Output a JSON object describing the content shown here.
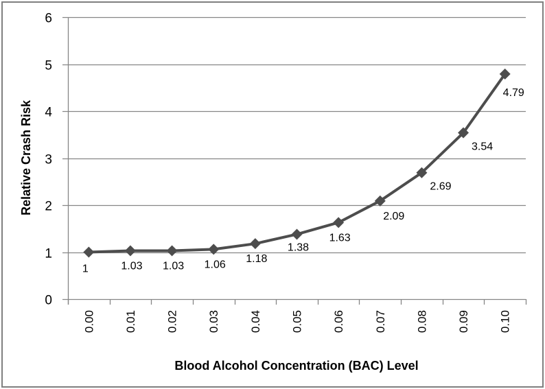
{
  "chart_data": {
    "type": "line",
    "title": "",
    "xlabel": "Blood Alcohol Concentration (BAC) Level",
    "ylabel": "Relative Crash Risk",
    "categories": [
      "0.00",
      "0.01",
      "0.02",
      "0.03",
      "0.04",
      "0.05",
      "0.06",
      "0.07",
      "0.08",
      "0.09",
      "0.10"
    ],
    "series": [
      {
        "name": "Relative Crash Risk",
        "values": [
          1,
          1.03,
          1.03,
          1.06,
          1.18,
          1.38,
          1.63,
          2.09,
          2.69,
          3.54,
          4.79
        ],
        "labels": [
          "1",
          "1.03",
          "1.03",
          "1.06",
          "1.18",
          "1.38",
          "1.63",
          "2.09",
          "2.69",
          "3.54",
          "4.79"
        ],
        "color": "#4d4d4d",
        "marker": "diamond"
      }
    ],
    "ylim": [
      0,
      6
    ],
    "yticks": [
      "0",
      "1",
      "2",
      "3",
      "4",
      "5",
      "6"
    ],
    "grid": true,
    "gridColor": "#868686",
    "legend": "none"
  }
}
